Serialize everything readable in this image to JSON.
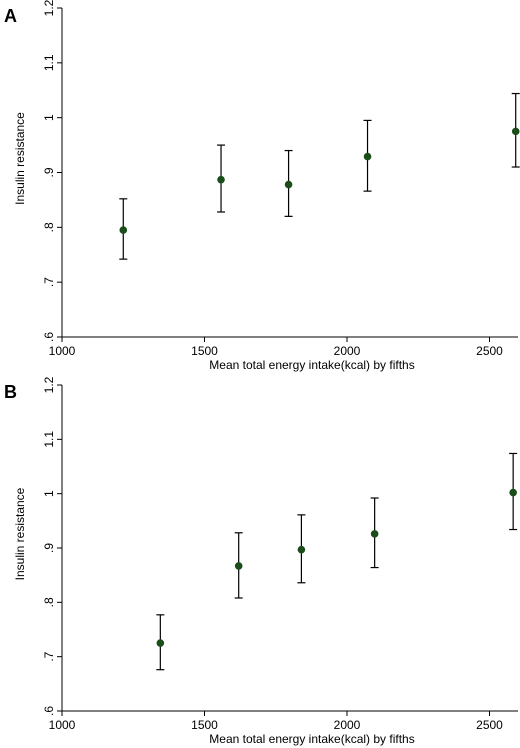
{
  "chart_data": [
    {
      "panel_label": "A",
      "type": "scatter",
      "xlabel": "Mean total energy intake(kcal) by fifths",
      "ylabel": "Insulin resistance",
      "xlim": [
        1000,
        2600
      ],
      "ylim": [
        0.6,
        1.2
      ],
      "x_ticks": [
        1000,
        1500,
        2000,
        2500
      ],
      "y_ticks": [
        0.6,
        0.7,
        0.8,
        0.9,
        1.0,
        1.1,
        1.2
      ],
      "x_tick_labels": [
        "1000",
        "1500",
        "2000",
        "2500"
      ],
      "y_tick_labels": [
        ".6",
        ".7",
        ".8",
        ".9",
        "1",
        "1.1",
        "1.2"
      ],
      "grid": false,
      "marker_color": "#1a4d1a",
      "points": [
        {
          "x": 1215,
          "y": 0.795,
          "lower": 0.742,
          "upper": 0.852
        },
        {
          "x": 1558,
          "y": 0.887,
          "lower": 0.828,
          "upper": 0.95
        },
        {
          "x": 1795,
          "y": 0.878,
          "lower": 0.82,
          "upper": 0.94
        },
        {
          "x": 2072,
          "y": 0.929,
          "lower": 0.866,
          "upper": 0.995
        },
        {
          "x": 2592,
          "y": 0.975,
          "lower": 0.91,
          "upper": 1.044
        }
      ]
    },
    {
      "panel_label": "B",
      "type": "scatter",
      "xlabel": "Mean total energy intake(kcal) by fifths",
      "ylabel": "Insulin resistance",
      "xlim": [
        1000,
        2600
      ],
      "ylim": [
        0.6,
        1.2
      ],
      "x_ticks": [
        1000,
        1500,
        2000,
        2500
      ],
      "y_ticks": [
        0.6,
        0.7,
        0.8,
        0.9,
        1.0,
        1.1,
        1.2
      ],
      "x_tick_labels": [
        "1000",
        "1500",
        "2000",
        "2500"
      ],
      "y_tick_labels": [
        ".6",
        ".7",
        ".8",
        ".9",
        "1",
        "1.1",
        "1.2"
      ],
      "grid": false,
      "marker_color": "#1a4d1a",
      "points": [
        {
          "x": 1345,
          "y": 0.725,
          "lower": 0.676,
          "upper": 0.777
        },
        {
          "x": 1620,
          "y": 0.867,
          "lower": 0.808,
          "upper": 0.928
        },
        {
          "x": 1840,
          "y": 0.897,
          "lower": 0.836,
          "upper": 0.961
        },
        {
          "x": 2097,
          "y": 0.926,
          "lower": 0.864,
          "upper": 0.992
        },
        {
          "x": 2583,
          "y": 1.002,
          "lower": 0.934,
          "upper": 1.074
        }
      ]
    }
  ]
}
